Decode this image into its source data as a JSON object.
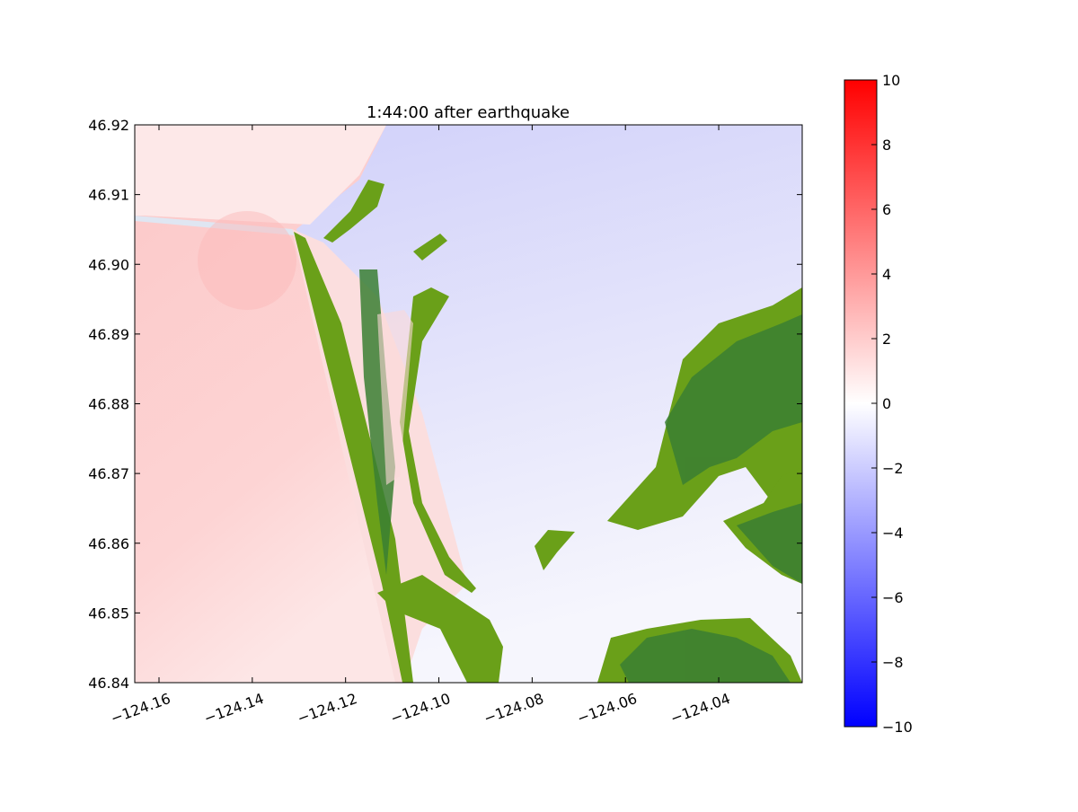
{
  "chart_data": {
    "type": "heatmap",
    "title": "1:44:00 after earthquake",
    "xlim": [
      -124.1652,
      -124.0221
    ],
    "ylim": [
      46.84,
      46.92
    ],
    "xticks": [
      {
        "value": -124.16,
        "label": "−124.16"
      },
      {
        "value": -124.14,
        "label": "−124.14"
      },
      {
        "value": -124.12,
        "label": "−124.12"
      },
      {
        "value": -124.1,
        "label": "−124.10"
      },
      {
        "value": -124.08,
        "label": "−124.08"
      },
      {
        "value": -124.06,
        "label": "−124.06"
      },
      {
        "value": -124.04,
        "label": "−124.04"
      }
    ],
    "yticks": [
      46.84,
      46.85,
      46.86,
      46.87,
      46.88,
      46.89,
      {
        "value": 46.9,
        "label": "46.90"
      },
      46.91,
      46.92
    ],
    "colorbar": {
      "lim": [
        -10,
        10
      ],
      "colors": [
        "#0000ff",
        "#ffffff",
        "#ff0000"
      ],
      "ticks": [
        {
          "value": -10,
          "label": "−10"
        },
        {
          "value": -8,
          "label": "−8"
        },
        {
          "value": -6,
          "label": "−6"
        },
        {
          "value": -4,
          "label": "−4"
        },
        {
          "value": -2,
          "label": "−2"
        },
        0,
        2,
        4,
        6,
        8,
        10
      ]
    }
  }
}
